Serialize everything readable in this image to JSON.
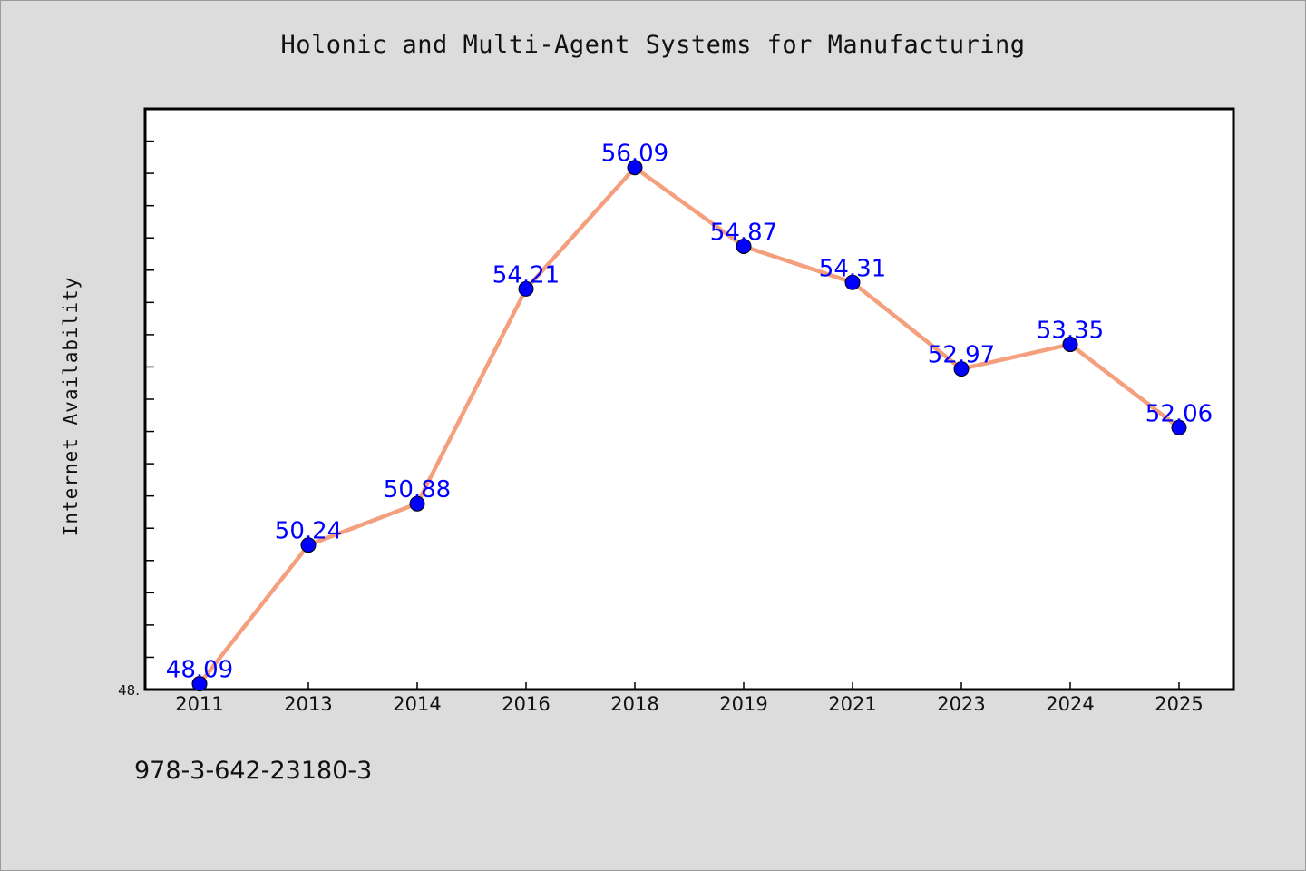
{
  "page": {
    "title": "Holonic and Multi-Agent Systems for Manufacturing",
    "footnote": "978-3-642-23180-3"
  },
  "chart_data": {
    "type": "line",
    "title": "Holonic and Multi-Agent Systems for Manufacturing",
    "xlabel": "",
    "ylabel": "Internet Availability",
    "categories": [
      "2011",
      "2013",
      "2014",
      "2016",
      "2018",
      "2019",
      "2021",
      "2023",
      "2024",
      "2025"
    ],
    "series": [
      {
        "values": [
          48.09,
          50.24,
          50.88,
          54.21,
          56.09,
          54.87,
          54.31,
          52.97,
          53.35,
          52.06
        ]
      }
    ],
    "data_labels": [
      "48.09",
      "50.24",
      "50.88",
      "54.21",
      "56.09",
      "54.87",
      "54.31",
      "52.97",
      "53.35",
      "52.06"
    ],
    "ylim": [
      48.0,
      57.0
    ],
    "ytick_label": "48.",
    "grid": false,
    "legend": false,
    "colors": {
      "line": "#f4a07e",
      "marker": "#0000ff",
      "data_label": "#0000ff",
      "plot_background": "#ffffff",
      "figure_background": "#dcdcdc"
    }
  }
}
